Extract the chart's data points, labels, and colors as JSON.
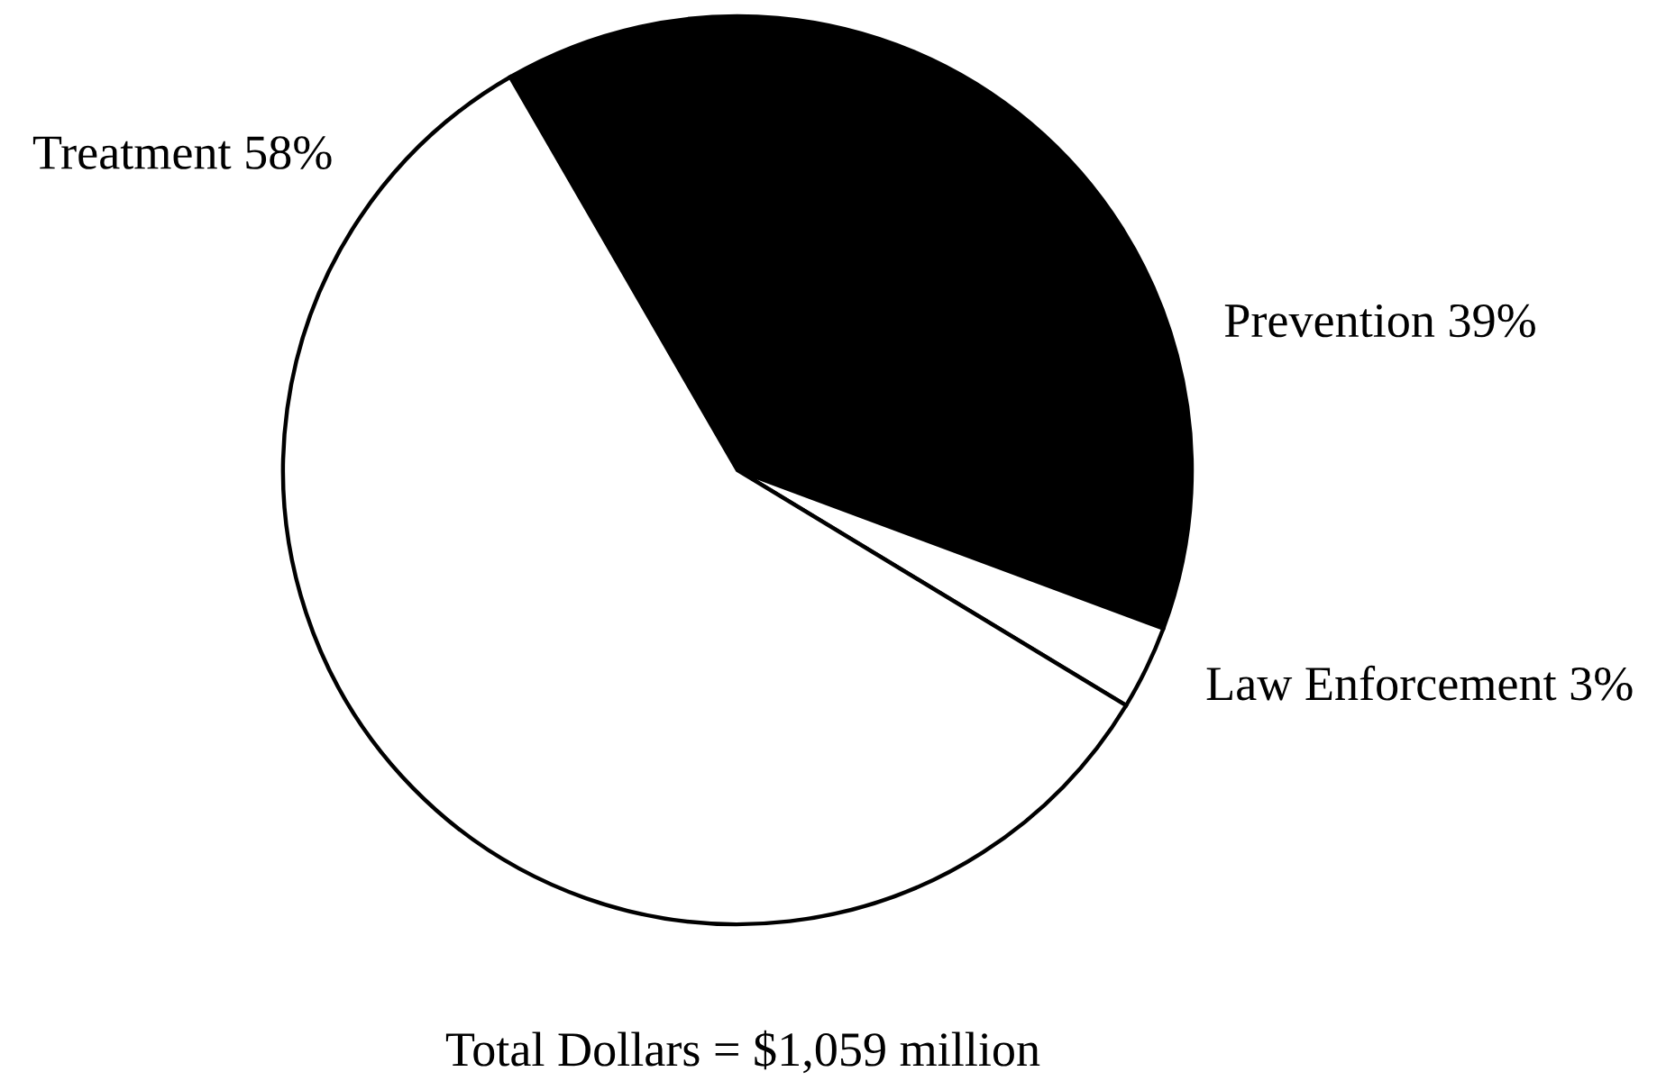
{
  "chart_data": {
    "type": "pie",
    "categories": [
      "Prevention",
      "Law Enforcement",
      "Treatment"
    ],
    "values": [
      39,
      3,
      58
    ],
    "value_labels": [
      "39%",
      "3%",
      "58%"
    ],
    "colors": [
      "#000000",
      "#ffffff",
      "#ffffff"
    ],
    "annotations": [
      "Total Dollars = $1,059 million"
    ]
  }
}
